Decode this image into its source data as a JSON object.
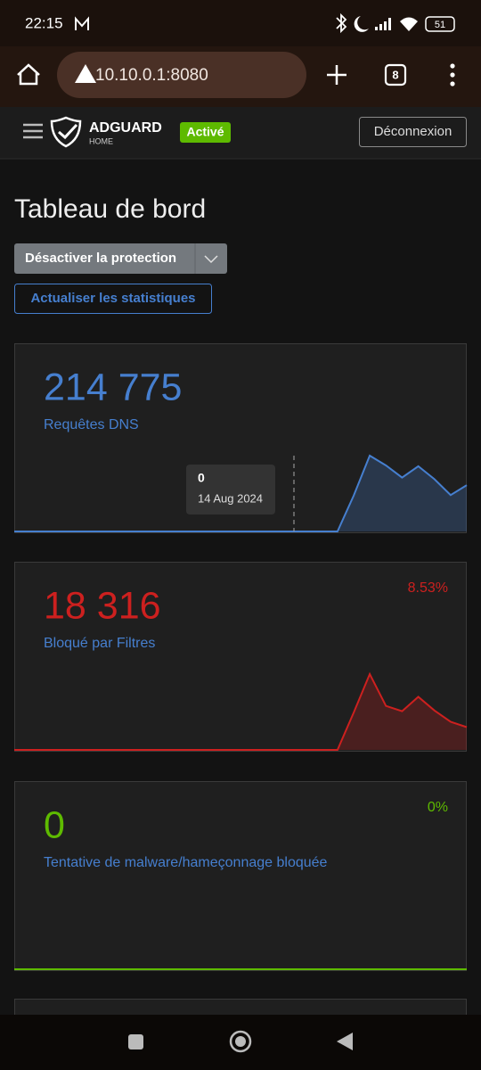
{
  "status_bar": {
    "time": "22:15",
    "battery": 51
  },
  "browser": {
    "url": "10.10.0.1:8080",
    "tab_count": 8
  },
  "header": {
    "brand": "ADGUARD",
    "brand_sub": "HOME",
    "status": "Activé",
    "logout": "Déconnexion"
  },
  "page": {
    "title": "Tableau de bord",
    "disable_button": "Désactiver la protection",
    "refresh_button": "Actualiser les statistiques"
  },
  "cards": [
    {
      "value": "214 775",
      "label": "Requêtes DNS",
      "color": "#467fcf",
      "sparkline": [
        0,
        0,
        0,
        0,
        0,
        0,
        0,
        0,
        0,
        0,
        0,
        0,
        0,
        0,
        0,
        0,
        0,
        0,
        0,
        0,
        0,
        47,
        100,
        87,
        71,
        86,
        69,
        48,
        61
      ],
      "tooltip": {
        "value": 0,
        "date": "14 Aug 2024"
      }
    },
    {
      "value": "18 316",
      "label": "Bloqué par Filtres",
      "percent": "8.53%",
      "color": "#cd201f",
      "sparkline": [
        0,
        0,
        0,
        0,
        0,
        0,
        0,
        0,
        0,
        0,
        0,
        0,
        0,
        0,
        0,
        0,
        0,
        0,
        0,
        0,
        0,
        49,
        100,
        58,
        51,
        70,
        52,
        37,
        30
      ]
    },
    {
      "value": 0,
      "label": "Tentative de malware/hameçonnage bloquée",
      "percent": "0%",
      "color": "#5eba00",
      "sparkline": [
        0,
        0,
        0,
        0,
        0,
        0,
        0,
        0,
        0,
        0,
        0,
        0,
        0,
        0,
        0,
        0,
        0,
        0,
        0,
        0,
        0,
        0,
        0,
        0,
        0,
        0,
        0,
        0,
        0
      ]
    }
  ]
}
